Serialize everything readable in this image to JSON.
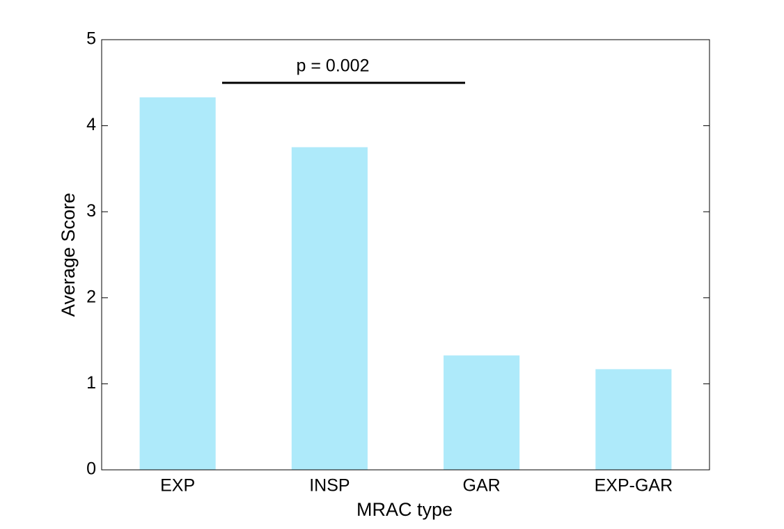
{
  "chart_data": {
    "type": "bar",
    "xlabel": "MRAC type",
    "ylabel": "Average Score",
    "annotation": "p = 0.002",
    "categories": [
      "EXP",
      "INSP",
      "GAR",
      "EXP-GAR"
    ],
    "values": [
      4.33,
      3.75,
      1.33,
      1.17
    ],
    "color": "#aeeafa",
    "ylim": [
      0,
      5
    ],
    "yticks": [
      0,
      1,
      2,
      3,
      4,
      5
    ],
    "grid": false
  }
}
